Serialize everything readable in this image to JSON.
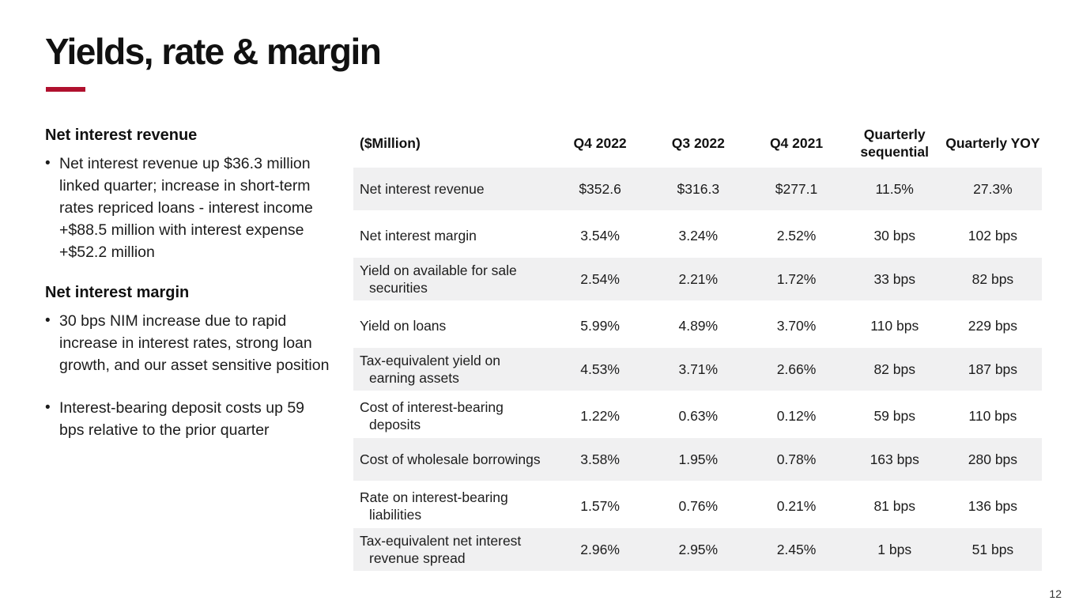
{
  "slide": {
    "title": "Yields, rate & margin",
    "page_number": "12",
    "accent_color": "#b0102e",
    "shaded_row_color": "#f0f0f1"
  },
  "left_panel": {
    "sections": [
      {
        "heading": "Net interest revenue",
        "bullets": [
          "Net interest revenue up $36.3 million linked quarter; increase in short-term rates repriced loans - interest income +$88.5 million with interest expense +$52.2 million"
        ]
      },
      {
        "heading": "Net interest margin",
        "bullets": [
          "30 bps NIM increase due to rapid increase in interest rates, strong loan growth, and our asset sensitive position",
          "Interest-bearing deposit costs up 59 bps relative to the prior quarter"
        ]
      }
    ]
  },
  "table": {
    "columns": [
      "($Million)",
      "Q4 2022",
      "Q3 2022",
      "Q4 2021",
      "Quarterly sequential",
      "Quarterly YOY"
    ],
    "rows": [
      {
        "label": "Net interest revenue",
        "values": [
          "$352.6",
          "$316.3",
          "$277.1",
          "11.5%",
          "27.3%"
        ],
        "shaded": true
      },
      {
        "label": "Net interest margin",
        "values": [
          "3.54%",
          "3.24%",
          "2.52%",
          "30 bps",
          "102 bps"
        ],
        "shaded": false
      },
      {
        "label": "Yield on available for sale securities",
        "values": [
          "2.54%",
          "2.21%",
          "1.72%",
          "33 bps",
          "82 bps"
        ],
        "shaded": true
      },
      {
        "label": "Yield on loans",
        "values": [
          "5.99%",
          "4.89%",
          "3.70%",
          "110 bps",
          "229 bps"
        ],
        "shaded": false
      },
      {
        "label": "Tax-equivalent yield on earning assets",
        "values": [
          "4.53%",
          "3.71%",
          "2.66%",
          "82 bps",
          "187 bps"
        ],
        "shaded": true
      },
      {
        "label": "Cost of interest-bearing deposits",
        "values": [
          "1.22%",
          "0.63%",
          "0.12%",
          "59 bps",
          "110 bps"
        ],
        "shaded": false
      },
      {
        "label": "Cost of wholesale borrowings",
        "values": [
          "3.58%",
          "1.95%",
          "0.78%",
          "163 bps",
          "280 bps"
        ],
        "shaded": true
      },
      {
        "label": "Rate on interest-bearing liabilities",
        "values": [
          "1.57%",
          "0.76%",
          "0.21%",
          "81 bps",
          "136 bps"
        ],
        "shaded": false
      },
      {
        "label": "Tax-equivalent net interest revenue spread",
        "values": [
          "2.96%",
          "2.95%",
          "2.45%",
          "1 bps",
          "51 bps"
        ],
        "shaded": true
      }
    ]
  }
}
